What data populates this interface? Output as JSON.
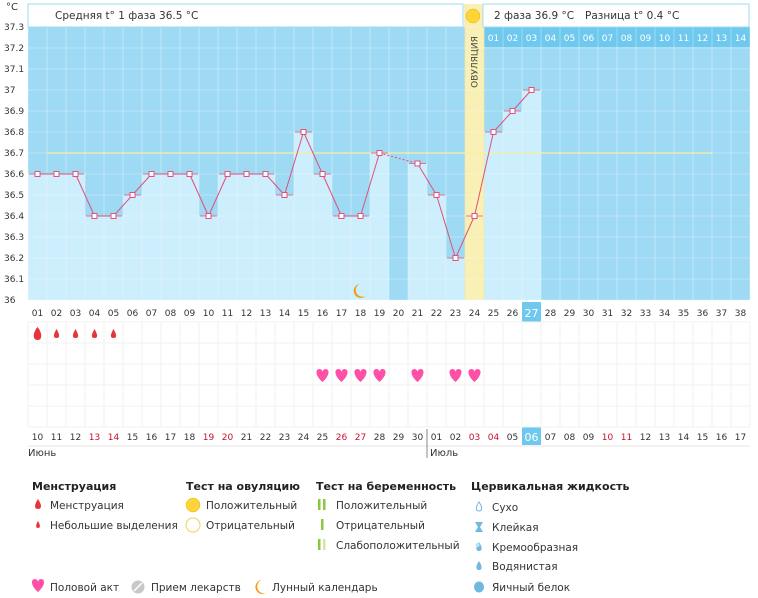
{
  "unit_label": "°C",
  "phase1_label": "Средняя t° 1 фаза 36.5 °C",
  "phase2_label": "2 фаза 36.9 °C",
  "diff_label": "Разница t° 0.4 °C",
  "ovulation_label": "ОВУЛЯЦИЯ",
  "chart_data": {
    "type": "bar",
    "y_ticks": [
      "36",
      "36.1",
      "36.2",
      "36.3",
      "36.4",
      "36.5",
      "36.6",
      "36.7",
      "36.8",
      "36.9",
      "37",
      "37.1",
      "37.2",
      "37.3"
    ],
    "ylim": [
      36.0,
      37.3
    ],
    "cycle_days": [
      "01",
      "02",
      "03",
      "04",
      "05",
      "06",
      "07",
      "08",
      "09",
      "10",
      "11",
      "12",
      "13",
      "14",
      "15",
      "16",
      "17",
      "18",
      "19",
      "20",
      "21",
      "22",
      "23",
      "24",
      "25",
      "26",
      "27",
      "28",
      "29",
      "30",
      "31",
      "32",
      "33",
      "34",
      "35",
      "36",
      "37",
      "38"
    ],
    "post_ovulation_days": [
      "01",
      "02",
      "03",
      "04",
      "05",
      "06",
      "07",
      "08",
      "09",
      "10",
      "11",
      "12",
      "13",
      "14"
    ],
    "temperatures": [
      36.6,
      36.6,
      36.6,
      36.4,
      36.4,
      36.5,
      36.6,
      36.6,
      36.6,
      36.4,
      36.6,
      36.6,
      36.6,
      36.5,
      36.8,
      36.6,
      36.4,
      36.4,
      36.7,
      null,
      36.65,
      36.5,
      36.2,
      36.4,
      36.8,
      36.9,
      37.0
    ],
    "coverline": 36.7,
    "ovulation_day": 24,
    "current_day": 27,
    "dates": [
      "10",
      "11",
      "12",
      "13",
      "14",
      "15",
      "16",
      "17",
      "18",
      "19",
      "20",
      "21",
      "22",
      "23",
      "24",
      "25",
      "26",
      "27",
      "28",
      "29",
      "30",
      "01",
      "02",
      "03",
      "04",
      "05",
      "06",
      "07",
      "08",
      "09",
      "10",
      "11",
      "12",
      "13",
      "14",
      "15",
      "16",
      "17"
    ],
    "weekend_dates": [
      4,
      5,
      10,
      11,
      17,
      18,
      24,
      25,
      31,
      32
    ],
    "month_labels": [
      {
        "label": "Июнь",
        "day": 1
      },
      {
        "label": "Июль",
        "day": 22
      }
    ],
    "menstruation_large": [
      1
    ],
    "menstruation_small": [
      2,
      3,
      4,
      5
    ],
    "intercourse_days": [
      16,
      17,
      18,
      19,
      21,
      23,
      24
    ],
    "lunar_day": 18
  },
  "legend": {
    "menstruation": {
      "title": "Менструация",
      "items": [
        "Менструация",
        "Небольшие выделения"
      ]
    },
    "ovulation_test": {
      "title": "Тест на овуляцию",
      "items": [
        "Положительный",
        "Отрицательный"
      ]
    },
    "pregnancy_test": {
      "title": "Тест на беременность",
      "items": [
        "Положительный",
        "Отрицательный",
        "Слабоположительный"
      ]
    },
    "cervical": {
      "title": "Цервикальная жидкость",
      "items": [
        "Сухо",
        "Клейкая",
        "Кремообразная",
        "Водянистая",
        "Яичный белок"
      ]
    },
    "bottom": [
      "Половой акт",
      "Прием лекарств",
      "Лунный календарь"
    ]
  },
  "colors": {
    "sky": "#9fdaf4",
    "dark_sky": "#6fc8ee",
    "bar": "#cdeefc",
    "line": "#e0507a",
    "ovulation_band": "#f8f0b4",
    "weekend": "#c8102e",
    "heart": "#ff4fa6",
    "drop": "#e8343c",
    "sun": "#ffd43b",
    "moon": "#f59c1a"
  }
}
